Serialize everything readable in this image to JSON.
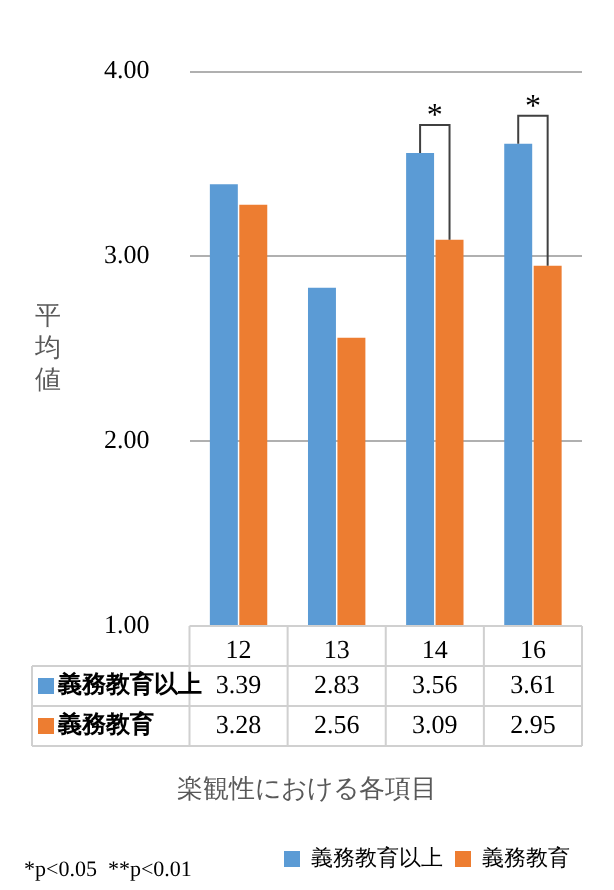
{
  "chart_data": {
    "type": "bar",
    "categories": [
      "12",
      "13",
      "14",
      "16"
    ],
    "series": [
      {
        "name": "義務教育以上",
        "color": "#5b9bd5",
        "values": [
          3.39,
          2.83,
          3.56,
          3.61
        ]
      },
      {
        "name": "義務教育",
        "color": "#ed7d31",
        "values": [
          3.28,
          2.56,
          3.09,
          2.95
        ]
      }
    ],
    "ylim": [
      1,
      4
    ],
    "yticks": [
      {
        "value": 1,
        "label": "1.00"
      },
      {
        "value": 2,
        "label": "2.00"
      },
      {
        "value": 3,
        "label": "3.00"
      },
      {
        "value": 4,
        "label": "4.00"
      }
    ],
    "ylabel": "平均値",
    "xlabel": "楽観性における各項目",
    "grid": "y",
    "legend": "bottom",
    "data_labels": true,
    "annotations": [
      {
        "text": "*",
        "x": "14",
        "y": 3.56
      },
      {
        "text": "*",
        "x": "16",
        "y": 3.61
      },
      "*p<0.05  **p<0.01"
    ]
  }
}
